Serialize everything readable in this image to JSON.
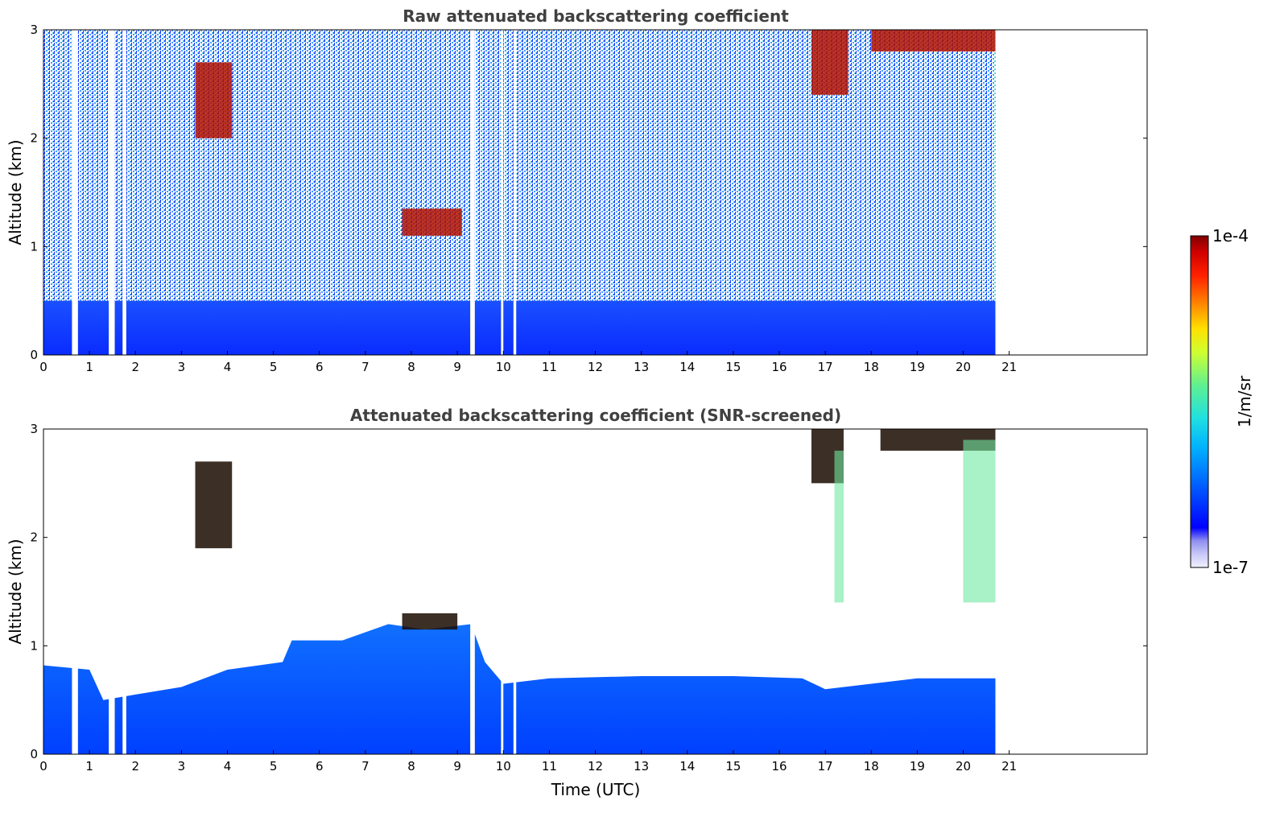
{
  "chart_data": [
    {
      "type": "heatmap",
      "title": "Raw attenuated backscattering coefficient",
      "xlabel": "",
      "ylabel": "Altitude (km)",
      "xlim": [
        0,
        24
      ],
      "ylim": [
        0,
        3
      ],
      "x_ticks": [
        "0",
        "1",
        "2",
        "3",
        "4",
        "5",
        "6",
        "7",
        "8",
        "9",
        "10",
        "11",
        "12",
        "13",
        "14",
        "15",
        "16",
        "17",
        "18",
        "19",
        "20",
        "21"
      ],
      "y_ticks": [
        "0",
        "1",
        "2",
        "3"
      ],
      "data_end_hour": 20.7,
      "missing_data_gaps_hours": [
        [
          0.62,
          0.75
        ],
        [
          1.42,
          1.55
        ],
        [
          1.72,
          1.8
        ],
        [
          9.28,
          9.38
        ],
        [
          9.95,
          10.0
        ],
        [
          10.22,
          10.28
        ]
      ],
      "features": [
        {
          "kind": "boundary_layer",
          "from_hour": 0,
          "to_hour": 20.7,
          "top_km": 0.5
        },
        {
          "kind": "cloud",
          "hours": [
            3.3,
            4.1
          ],
          "km": [
            2.0,
            2.7
          ]
        },
        {
          "kind": "cloud",
          "hours": [
            7.8,
            9.1
          ],
          "km": [
            1.1,
            1.35
          ]
        },
        {
          "kind": "cloud",
          "hours": [
            16.7,
            17.5
          ],
          "km": [
            2.4,
            3.0
          ]
        },
        {
          "kind": "cloud",
          "hours": [
            18.0,
            20.7
          ],
          "km": [
            2.8,
            3.0
          ]
        }
      ]
    },
    {
      "type": "heatmap",
      "title": "Attenuated backscattering coefficient (SNR-screened)",
      "xlabel": "Time (UTC)",
      "ylabel": "Altitude (km)",
      "xlim": [
        0,
        24
      ],
      "ylim": [
        0,
        3
      ],
      "x_ticks": [
        "0",
        "1",
        "2",
        "3",
        "4",
        "5",
        "6",
        "7",
        "8",
        "9",
        "10",
        "11",
        "12",
        "13",
        "14",
        "15",
        "16",
        "17",
        "18",
        "19",
        "20",
        "21"
      ],
      "y_ticks": [
        "0",
        "1",
        "2",
        "3"
      ],
      "data_end_hour": 20.7,
      "missing_data_gaps_hours": [
        [
          0.62,
          0.75
        ],
        [
          1.42,
          1.55
        ],
        [
          1.72,
          1.8
        ],
        [
          9.28,
          9.38
        ],
        [
          9.95,
          10.0
        ],
        [
          10.22,
          10.28
        ]
      ],
      "boundary_layer_top_km": [
        [
          0,
          0.82
        ],
        [
          1.0,
          0.78
        ],
        [
          1.3,
          0.5
        ],
        [
          2.0,
          0.55
        ],
        [
          3.0,
          0.62
        ],
        [
          4.0,
          0.78
        ],
        [
          5.2,
          0.85
        ],
        [
          5.4,
          1.05
        ],
        [
          6.5,
          1.05
        ],
        [
          7.5,
          1.2
        ],
        [
          8.3,
          1.15
        ],
        [
          9.3,
          1.2
        ],
        [
          9.6,
          0.85
        ],
        [
          10.0,
          0.65
        ],
        [
          11.0,
          0.7
        ],
        [
          13.0,
          0.72
        ],
        [
          15.0,
          0.72
        ],
        [
          16.5,
          0.7
        ],
        [
          17.0,
          0.6
        ],
        [
          18.0,
          0.65
        ],
        [
          19.0,
          0.7
        ],
        [
          20.7,
          0.7
        ]
      ],
      "features": [
        {
          "kind": "cloud",
          "hours": [
            3.3,
            4.1
          ],
          "km": [
            1.9,
            2.7
          ]
        },
        {
          "kind": "cloud",
          "hours": [
            7.8,
            9.0
          ],
          "km": [
            1.15,
            1.3
          ]
        },
        {
          "kind": "cloud",
          "hours": [
            16.7,
            17.4
          ],
          "km": [
            2.5,
            3.0
          ]
        },
        {
          "kind": "cloud",
          "hours": [
            18.2,
            20.7
          ],
          "km": [
            2.8,
            3.0
          ]
        },
        {
          "kind": "virga",
          "hours": [
            17.2,
            17.4
          ],
          "km": [
            1.4,
            2.8
          ]
        },
        {
          "kind": "virga",
          "hours": [
            20.0,
            20.7
          ],
          "km": [
            1.4,
            2.9
          ]
        }
      ]
    }
  ],
  "colorbar": {
    "label": "1/m/sr",
    "max_label": "1e-4",
    "min_label": "1e-7",
    "colormap": [
      "#f0f0ff",
      "#c8c8f8",
      "#9090f0",
      "#0000ff",
      "#0060ff",
      "#00b0ff",
      "#20e0e0",
      "#60f090",
      "#d0ff30",
      "#ffe000",
      "#ff8000",
      "#ff2000",
      "#d00000",
      "#800000"
    ]
  }
}
